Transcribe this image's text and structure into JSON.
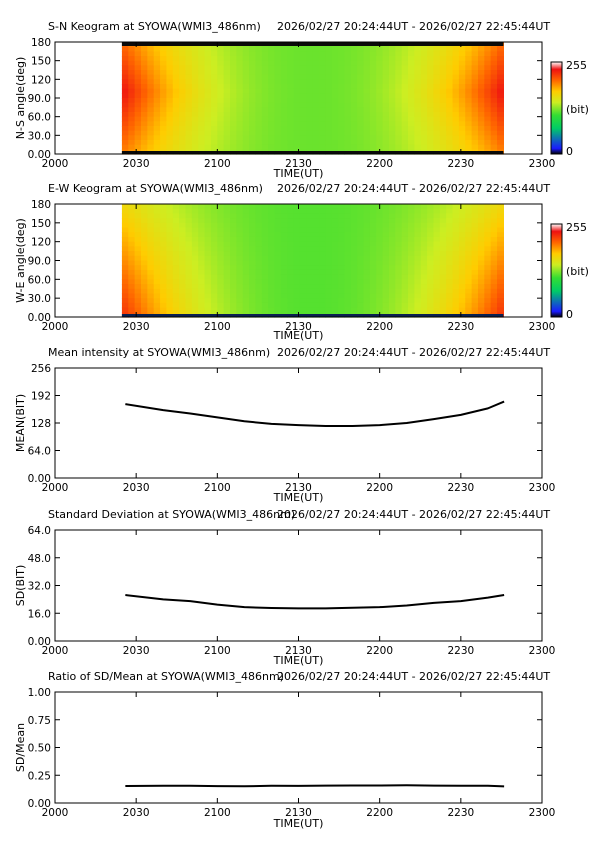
{
  "colors": {
    "background": "#ffffff",
    "axis": "#000000",
    "line": "#000000",
    "keogram_frame_dark": "#0a0a0a",
    "keogram_floor_dark": "#0a2050",
    "colorbar_stops": [
      "#000000",
      "#1a1aff",
      "#00cc66",
      "#33dd33",
      "#ccee22",
      "#ffcc00",
      "#ff6600",
      "#ee1111",
      "#ffffff"
    ]
  },
  "chart_data": [
    {
      "type": "heatmap",
      "title": "S-N Keogram at SYOWA(WMI3_486nm)",
      "time_range_label": "2026/02/27 20:24:44UT - 2026/02/27 22:45:44UT",
      "xlabel": "TIME(UT)",
      "ylabel": "N-S angle(deg)",
      "x_ticks": [
        "2000",
        "2030",
        "2100",
        "2130",
        "2200",
        "2230",
        "2300"
      ],
      "y_ticks": [
        "0.00",
        "30.0",
        "60.0",
        "90.0",
        "120",
        "150",
        "180"
      ],
      "ylim": [
        0,
        180
      ],
      "data_extent_time": [
        "2024:44",
        "2245:44"
      ],
      "colorbar": {
        "min_label": "0",
        "max_label": "255",
        "unit_label": "(bit)"
      },
      "intensity_profile": {
        "time_edges_bit": 235,
        "time_center_bit": 120,
        "description": "brightest (red) near start and end, green/yellow in middle; dark band near 180 and 0"
      }
    },
    {
      "type": "heatmap",
      "title": "E-W Keogram at SYOWA(WMI3_486nm)",
      "time_range_label": "2026/02/27 20:24:44UT - 2026/02/27 22:45:44UT",
      "xlabel": "TIME(UT)",
      "ylabel": "W-E angle(deg)",
      "x_ticks": [
        "2000",
        "2030",
        "2100",
        "2130",
        "2200",
        "2230",
        "2300"
      ],
      "y_ticks": [
        "0.00",
        "30.0",
        "60.0",
        "90.0",
        "120",
        "150",
        "180"
      ],
      "ylim": [
        0,
        180
      ],
      "data_extent_time": [
        "2024:44",
        "2245:44"
      ],
      "colorbar": {
        "min_label": "0",
        "max_label": "255",
        "unit_label": "(bit)"
      },
      "intensity_profile": {
        "time_edges_bit": 225,
        "time_center_bit": 115,
        "description": "bright red toward low angles at start and end, green elsewhere; thin dark band near 0"
      }
    },
    {
      "type": "line",
      "title": "Mean intensity at SYOWA(WMI3_486nm)",
      "time_range_label": "2026/02/27 20:24:44UT - 2026/02/27 22:45:44UT",
      "xlabel": "TIME(UT)",
      "ylabel": "MEAN(BIT)",
      "x_ticks": [
        "2000",
        "2030",
        "2100",
        "2130",
        "2200",
        "2230",
        "2300"
      ],
      "y_ticks": [
        "0.00",
        "64.0",
        "128",
        "192",
        "256"
      ],
      "ylim": [
        0,
        256
      ],
      "series": [
        {
          "x": [
            "2026",
            "2040",
            "2050",
            "2100",
            "2110",
            "2120",
            "2130",
            "2140",
            "2150",
            "2200",
            "2210",
            "2220",
            "2230",
            "2240",
            "2246"
          ],
          "values": [
            172,
            158,
            150,
            141,
            132,
            126,
            123,
            121,
            121,
            123,
            128,
            137,
            147,
            162,
            178
          ]
        }
      ]
    },
    {
      "type": "line",
      "title": "Standard Deviation at SYOWA(WMI3_486nm)",
      "time_range_label": "2026/02/27 20:24:44UT - 2026/02/27 22:45:44UT",
      "xlabel": "TIME(UT)",
      "ylabel": "SD(BIT)",
      "x_ticks": [
        "2000",
        "2030",
        "2100",
        "2130",
        "2200",
        "2230",
        "2300"
      ],
      "y_ticks": [
        "0.00",
        "16.0",
        "32.0",
        "48.0",
        "64.0"
      ],
      "ylim": [
        0,
        64
      ],
      "series": [
        {
          "x": [
            "2026",
            "2040",
            "2050",
            "2100",
            "2110",
            "2120",
            "2130",
            "2140",
            "2150",
            "2200",
            "2210",
            "2220",
            "2230",
            "2240",
            "2246"
          ],
          "values": [
            26.5,
            24,
            23,
            21,
            19.5,
            19,
            18.8,
            18.8,
            19.2,
            19.5,
            20.5,
            22,
            23,
            25,
            26.5
          ]
        }
      ]
    },
    {
      "type": "line",
      "title": "Ratio of SD/Mean at SYOWA(WMI3_486nm)",
      "time_range_label": "2026/02/27 20:24:44UT - 2026/02/27 22:45:44UT",
      "xlabel": "TIME(UT)",
      "ylabel": "SD/Mean",
      "x_ticks": [
        "2000",
        "2030",
        "2100",
        "2130",
        "2200",
        "2230",
        "2300"
      ],
      "y_ticks": [
        "0.00",
        "0.25",
        "0.50",
        "0.75",
        "1.00"
      ],
      "ylim": [
        0,
        1
      ],
      "series": [
        {
          "x": [
            "2026",
            "2040",
            "2050",
            "2100",
            "2110",
            "2120",
            "2130",
            "2140",
            "2150",
            "2200",
            "2210",
            "2220",
            "2230",
            "2240",
            "2246"
          ],
          "values": [
            0.153,
            0.155,
            0.155,
            0.152,
            0.151,
            0.155,
            0.154,
            0.156,
            0.158,
            0.158,
            0.16,
            0.157,
            0.155,
            0.155,
            0.15
          ]
        }
      ]
    }
  ]
}
